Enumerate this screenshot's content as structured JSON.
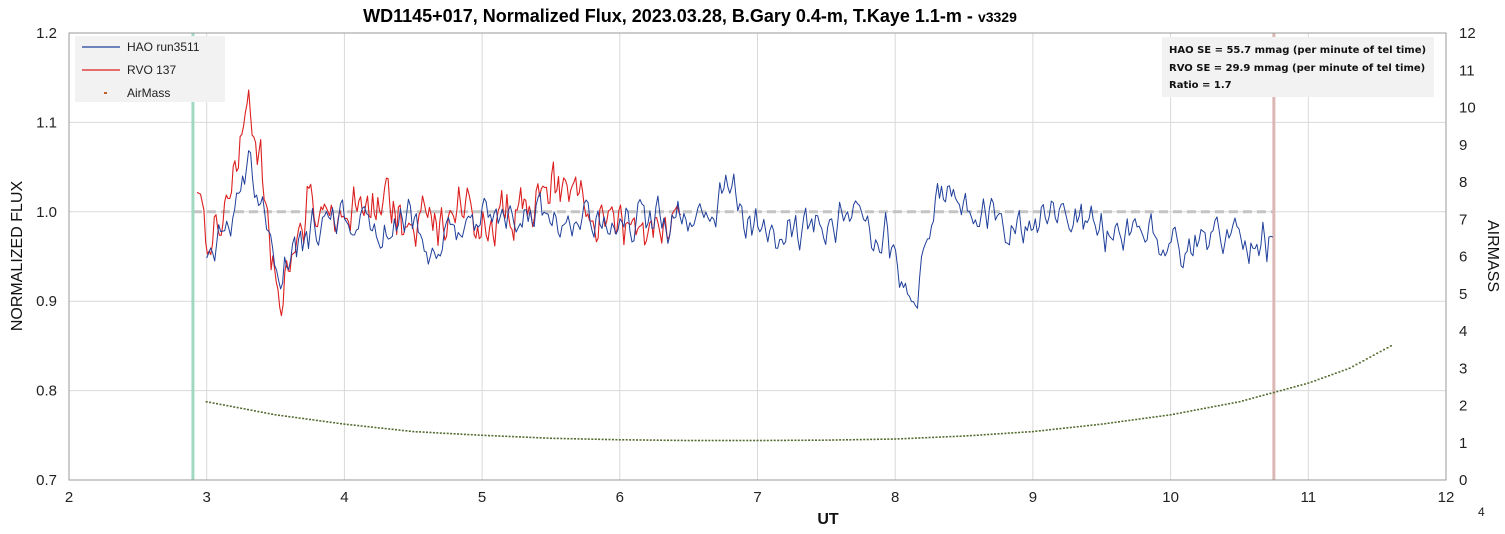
{
  "chart_data": {
    "type": "line",
    "title": "WD1145+017, Normalized Flux, 2023.03.28, B.Gary 0.4-m, T.Kaye 1.1-m - ",
    "title_version": "v3329",
    "xlabel": "UT",
    "ylabel": "NORMALIZED FLUX",
    "y2label": "AIRMASS",
    "xlim": [
      2,
      12
    ],
    "ylim": [
      0.7,
      1.2
    ],
    "y2lim": [
      0,
      12
    ],
    "xticks": [
      "2",
      "3",
      "4",
      "5",
      "6",
      "7",
      "8",
      "9",
      "10",
      "11",
      "12"
    ],
    "yticks": [
      "0.7",
      "0.8",
      "0.9",
      "1.0",
      "1.1",
      "1.2"
    ],
    "y2ticks": [
      "0",
      "1",
      "2",
      "3",
      "4",
      "5",
      "6",
      "7",
      "8",
      "9",
      "10",
      "11",
      "12"
    ],
    "grid": true,
    "legend_position": "top-left",
    "corner_note": "4",
    "annotation_lines": [
      "HAO SE = 55.7 mmag (per minute of tel time)",
      "RVO SE = 29.9 mmag (per minute of tel time)",
      "Ratio = 1.7"
    ],
    "reference_line": {
      "y": 1.0,
      "x_range": [
        2.9,
        10.75
      ],
      "color": "#c4c4c4"
    },
    "vertical_markers": [
      {
        "x": 2.9,
        "color": "#9fd9bf"
      },
      {
        "x": 10.75,
        "color": "#dbb8b3"
      }
    ],
    "series": [
      {
        "name": "HAO run3511",
        "color": "#1f3f9a",
        "x_range": [
          3.0,
          10.75
        ],
        "anchors": [
          [
            3.0,
            0.945
          ],
          [
            3.05,
            0.94
          ],
          [
            3.1,
            0.98
          ],
          [
            3.2,
            0.99
          ],
          [
            3.28,
            1.04
          ],
          [
            3.32,
            1.06
          ],
          [
            3.4,
            1.0
          ],
          [
            3.5,
            0.95
          ],
          [
            3.55,
            0.93
          ],
          [
            3.65,
            0.965
          ],
          [
            3.75,
            0.98
          ],
          [
            3.9,
            0.99
          ],
          [
            4.1,
            0.985
          ],
          [
            4.3,
            0.98
          ],
          [
            4.5,
            0.995
          ],
          [
            4.62,
            0.955
          ],
          [
            4.8,
            0.985
          ],
          [
            5.0,
            0.99
          ],
          [
            5.3,
            1.0
          ],
          [
            5.6,
            0.995
          ],
          [
            5.9,
            0.99
          ],
          [
            6.2,
            0.99
          ],
          [
            6.5,
            0.99
          ],
          [
            6.7,
            1.005
          ],
          [
            6.8,
            1.04
          ],
          [
            6.9,
            0.98
          ],
          [
            7.05,
            0.985
          ],
          [
            7.2,
            0.975
          ],
          [
            7.5,
            0.985
          ],
          [
            7.7,
            0.99
          ],
          [
            7.85,
            0.985
          ],
          [
            7.95,
            0.97
          ],
          [
            8.05,
            0.93
          ],
          [
            8.12,
            0.895
          ],
          [
            8.2,
            0.94
          ],
          [
            8.3,
            1.02
          ],
          [
            8.45,
            1.01
          ],
          [
            8.6,
            1.0
          ],
          [
            8.8,
            0.99
          ],
          [
            9.0,
            0.985
          ],
          [
            9.2,
            1.0
          ],
          [
            9.45,
            0.985
          ],
          [
            9.7,
            0.975
          ],
          [
            9.95,
            0.97
          ],
          [
            10.1,
            0.95
          ],
          [
            10.3,
            0.975
          ],
          [
            10.5,
            0.98
          ],
          [
            10.6,
            0.965
          ],
          [
            10.75,
            0.975
          ]
        ]
      },
      {
        "name": "RVO 137",
        "color": "#dc1f1f",
        "x_range": [
          2.93,
          6.45
        ],
        "anchors": [
          [
            2.93,
            1.03
          ],
          [
            3.0,
            0.97
          ],
          [
            3.1,
            0.985
          ],
          [
            3.2,
            1.06
          ],
          [
            3.3,
            1.12
          ],
          [
            3.4,
            1.05
          ],
          [
            3.45,
            0.97
          ],
          [
            3.55,
            0.91
          ],
          [
            3.65,
            0.94
          ],
          [
            3.75,
            1.02
          ],
          [
            3.9,
            0.99
          ],
          [
            4.1,
            1.0
          ],
          [
            4.3,
            1.005
          ],
          [
            4.5,
            0.99
          ],
          [
            4.7,
            0.99
          ],
          [
            4.85,
            1.02
          ],
          [
            4.95,
            0.98
          ],
          [
            5.1,
            0.99
          ],
          [
            5.3,
            1.005
          ],
          [
            5.5,
            1.03
          ],
          [
            5.7,
            1.02
          ],
          [
            5.85,
            0.99
          ],
          [
            6.0,
            0.985
          ],
          [
            6.15,
            0.975
          ],
          [
            6.3,
            0.99
          ],
          [
            6.45,
            0.985
          ]
        ]
      },
      {
        "name": "AirMass",
        "color": "#c0602a",
        "point_color": "#556b2f",
        "axis": "y2",
        "x_range": [
          3.0,
          11.6
        ],
        "x": [
          3.0,
          3.5,
          4.0,
          4.5,
          5.0,
          5.5,
          6.0,
          6.5,
          7.0,
          7.5,
          8.0,
          8.5,
          9.0,
          9.5,
          10.0,
          10.5,
          11.0,
          11.3,
          11.6
        ],
        "values": [
          2.1,
          1.75,
          1.5,
          1.3,
          1.2,
          1.12,
          1.08,
          1.06,
          1.06,
          1.07,
          1.1,
          1.18,
          1.3,
          1.5,
          1.75,
          2.1,
          2.6,
          3.0,
          3.6
        ]
      }
    ]
  }
}
